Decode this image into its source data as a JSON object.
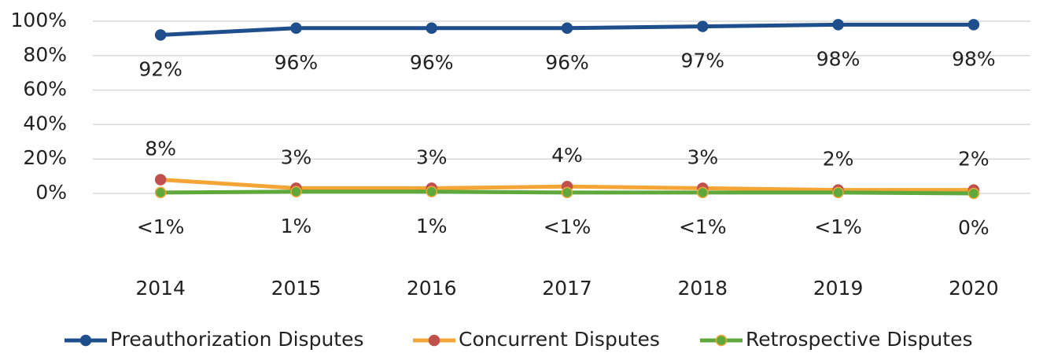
{
  "chart_data": {
    "type": "line",
    "categories": [
      "2014",
      "2015",
      "2016",
      "2017",
      "2018",
      "2019",
      "2020"
    ],
    "series": [
      {
        "name": "Preauthorization Disputes",
        "color": "#1f4e8c",
        "marker_color": "#1f4e8c",
        "values": [
          92,
          96,
          96,
          96,
          97,
          98,
          98
        ],
        "value_labels": [
          "92%",
          "96%",
          "96%",
          "96%",
          "97%",
          "98%",
          "98%"
        ]
      },
      {
        "name": "Concurrent Disputes",
        "color": "#f4a535",
        "marker_color": "#c0504d",
        "values": [
          8,
          3,
          3,
          4,
          3,
          2,
          2
        ],
        "value_labels": [
          "8%",
          "3%",
          "3%",
          "4%",
          "3%",
          "2%",
          "2%"
        ]
      },
      {
        "name": "Retrospective Disputes",
        "color": "#5fa83c",
        "marker_color": "#5fa83c",
        "values": [
          0.5,
          1,
          1,
          0.5,
          0.5,
          0.5,
          0
        ],
        "value_labels": [
          "<1%",
          "1%",
          "1%",
          "<1%",
          "<1%",
          "<1%",
          "0%"
        ]
      }
    ],
    "ylim": [
      0,
      100
    ],
    "yticks": [
      {
        "value": 0,
        "label": "0%"
      },
      {
        "value": 20,
        "label": "20%"
      },
      {
        "value": 40,
        "label": "40%"
      },
      {
        "value": 60,
        "label": "60%"
      },
      {
        "value": 80,
        "label": "80%"
      },
      {
        "value": 100,
        "label": "100%"
      }
    ],
    "grid": true,
    "legend": "bottom"
  }
}
